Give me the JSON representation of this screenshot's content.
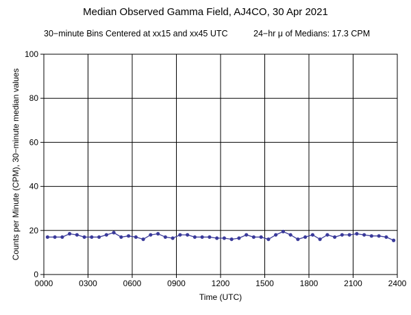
{
  "chart_data": {
    "type": "line",
    "title": "Median Observed Gamma Field, AJ4CO, 30 Apr 2021",
    "subtitle_left": "30−minute Bins Centered at xx15 and xx45 UTC",
    "subtitle_right": "24−hr μ of Medians: 17.3 CPM",
    "xlabel": "Time (UTC)",
    "ylabel": "Counts per Minute (CPM), 30−minute median values",
    "xlim": [
      0,
      24
    ],
    "ylim": [
      0,
      100
    ],
    "x_tick_labels": [
      "0000",
      "0300",
      "0600",
      "0900",
      "1200",
      "1500",
      "1800",
      "2100",
      "2400"
    ],
    "y_tick_labels": [
      "0",
      "20",
      "40",
      "60",
      "80",
      "100"
    ],
    "grid": true,
    "series": [
      {
        "color": "#3a3a9a",
        "x": [
          0.25,
          0.75,
          1.25,
          1.75,
          2.25,
          2.75,
          3.25,
          3.75,
          4.25,
          4.75,
          5.25,
          5.75,
          6.25,
          6.75,
          7.25,
          7.75,
          8.25,
          8.75,
          9.25,
          9.75,
          10.25,
          10.75,
          11.25,
          11.75,
          12.25,
          12.75,
          13.25,
          13.75,
          14.25,
          14.75,
          15.25,
          15.75,
          16.25,
          16.75,
          17.25,
          17.75,
          18.25,
          18.75,
          19.25,
          19.75,
          20.25,
          20.75,
          21.25,
          21.75,
          22.25,
          22.75,
          23.25,
          23.75
        ],
        "y": [
          17,
          17,
          17,
          18.5,
          18,
          17,
          17,
          17,
          18,
          19,
          17,
          17.5,
          17,
          16,
          18,
          18.5,
          17,
          16.5,
          18,
          18,
          17,
          17,
          17,
          16.5,
          16.5,
          16,
          16.5,
          18,
          17,
          17,
          16,
          18,
          19.5,
          18,
          16,
          17,
          18,
          16,
          18,
          17,
          18,
          18,
          18.5,
          18,
          17.5,
          17.5,
          17,
          15.5
        ]
      }
    ]
  }
}
